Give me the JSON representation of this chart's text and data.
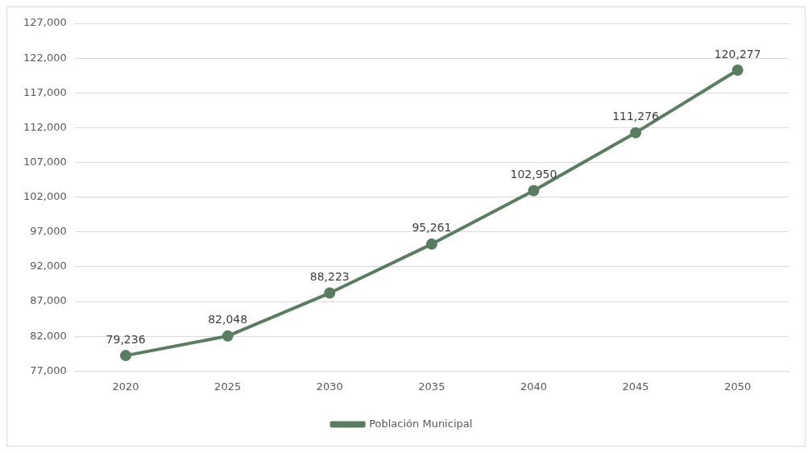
{
  "chart_data": {
    "type": "line",
    "categories": [
      "2020",
      "2025",
      "2030",
      "2035",
      "2040",
      "2045",
      "2050"
    ],
    "series": [
      {
        "name": "Población Municipal",
        "color": "#5a7d62",
        "values": [
          79236,
          82048,
          88223,
          95261,
          102950,
          111276,
          120277
        ],
        "value_labels": [
          "79,236",
          "82,048",
          "88,223",
          "95,261",
          "102,950",
          "111,276",
          "120,277"
        ]
      }
    ],
    "ylim": [
      77000,
      127000
    ],
    "yticks": [
      {
        "value": 77000,
        "label": "77,000"
      },
      {
        "value": 82000,
        "label": "82,000"
      },
      {
        "value": 87000,
        "label": "87,000"
      },
      {
        "value": 92000,
        "label": "92,000"
      },
      {
        "value": 97000,
        "label": "97,000"
      },
      {
        "value": 102000,
        "label": "102,000"
      },
      {
        "value": 107000,
        "label": "107,000"
      },
      {
        "value": 112000,
        "label": "112,000"
      },
      {
        "value": 117000,
        "label": "117,000"
      },
      {
        "value": 122000,
        "label": "122,000"
      },
      {
        "value": 127000,
        "label": "127,000"
      }
    ],
    "grid": "y",
    "legend": "bottom",
    "marker": "circle",
    "line_style": "solid"
  }
}
